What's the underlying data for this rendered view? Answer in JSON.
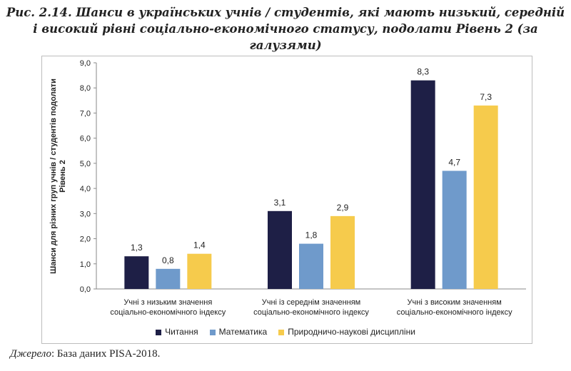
{
  "title_line1": "Рис. 2.14. Шанси в українських учнів / студентів, які мають низький, середній",
  "title_line2": "і високий рівні соціально-економічного статусу, подолати Рівень 2 (за галузями)",
  "source_label": "Джерело",
  "source_text": ": База даних PISA-2018.",
  "colors": {
    "reading": "#1e1f46",
    "math": "#6f9acb",
    "science": "#f6cb4c"
  },
  "chart_data": {
    "type": "bar",
    "ylabel_line1": "Шанси для різних груп учнів / студентів подолати",
    "ylabel_line2": "Рівень 2",
    "ylim": [
      0,
      9
    ],
    "yticks": [
      "0,0",
      "1,0",
      "2,0",
      "3,0",
      "4,0",
      "5,0",
      "6,0",
      "7,0",
      "8,0",
      "9,0"
    ],
    "grid": false,
    "legend_position": "bottom",
    "categories": [
      [
        "Учні з низьким значення",
        "соціально-економічного індексу"
      ],
      [
        "Учні із середнім значенням",
        "соціально-економічного індексу"
      ],
      [
        "Учні з високим значенням",
        "соціально-економічного індексу"
      ]
    ],
    "series": [
      {
        "name": "Читання",
        "values": [
          1.3,
          3.1,
          8.3
        ],
        "labels": [
          "1,3",
          "3,1",
          "8,3"
        ],
        "color_key": "reading"
      },
      {
        "name": "Математика",
        "values": [
          0.8,
          1.8,
          4.7
        ],
        "labels": [
          "0,8",
          "1,8",
          "4,7"
        ],
        "color_key": "math"
      },
      {
        "name": "Природничо-наукові дисципліни",
        "values": [
          1.4,
          2.9,
          7.3
        ],
        "labels": [
          "1,4",
          "2,9",
          "7,3"
        ],
        "color_key": "science"
      }
    ]
  }
}
